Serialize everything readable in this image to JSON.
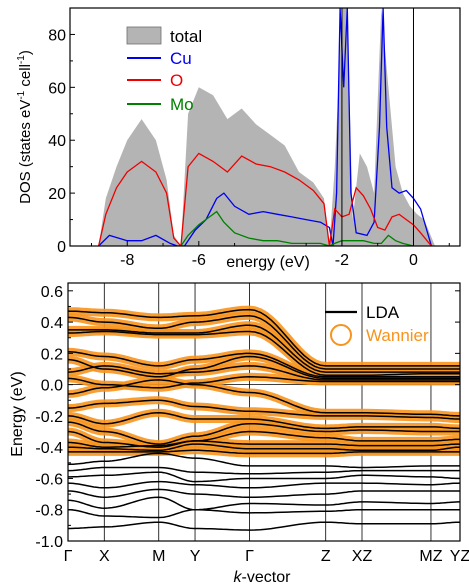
{
  "chart_data": [
    {
      "type": "area",
      "ylabel": "DOS (states eV",
      "ylabel_sup1": "-1",
      "ylabel_mid": " cell",
      "ylabel_sup2": "-1",
      "ylabel_end": ")",
      "xlabel": "energy (eV)",
      "xlim": [
        -9.6,
        1.3
      ],
      "ylim": [
        0,
        90
      ],
      "xticks": [
        -8,
        -6,
        -2,
        0
      ],
      "xticklabels": [
        "-8",
        "-6",
        "-2",
        "0"
      ],
      "yticks": [
        0,
        20,
        40,
        60,
        80
      ],
      "yticklabels": [
        "0",
        "20",
        "40",
        "60",
        "80"
      ],
      "vlines": [
        -2,
        0
      ],
      "legend_position": "top-left",
      "series": [
        {
          "name": "total",
          "color": "#b4b4b4",
          "style": "fill",
          "x": [
            -8.8,
            -8.6,
            -8.3,
            -8.0,
            -7.6,
            -7.2,
            -6.9,
            -6.7,
            -6.5,
            -6.3,
            -6.0,
            -5.6,
            -5.2,
            -4.8,
            -4.4,
            -4.0,
            -3.6,
            -3.2,
            -2.8,
            -2.5,
            -2.35,
            -2.2,
            -2.0,
            -1.85,
            -1.7,
            -1.5,
            -1.3,
            -1.1,
            -0.9,
            -0.7,
            -0.5,
            -0.3,
            -0.1,
            0.1,
            0.3,
            0.6
          ],
          "y": [
            0,
            18,
            30,
            40,
            48,
            40,
            25,
            4,
            0,
            50,
            60,
            57,
            48,
            52,
            46,
            42,
            38,
            28,
            24,
            18,
            0,
            30,
            90,
            90,
            10,
            35,
            30,
            20,
            90,
            60,
            30,
            20,
            15,
            12,
            10,
            0
          ]
        },
        {
          "name": "Cu",
          "color": "#0000ee",
          "style": "line",
          "x": [
            -8.8,
            -8.5,
            -8.0,
            -7.6,
            -7.2,
            -6.8,
            -6.6,
            -6.4,
            -6.1,
            -5.8,
            -5.5,
            -5.3,
            -5.0,
            -4.6,
            -4.2,
            -3.8,
            -3.4,
            -3.0,
            -2.6,
            -2.35,
            -2.25,
            -2.15,
            -2.05,
            -1.95,
            -1.85,
            -1.75,
            -1.6,
            -1.3,
            -1.1,
            -0.95,
            -0.85,
            -0.75,
            -0.6,
            -0.4,
            -0.2,
            0.0,
            0.2,
            0.5
          ],
          "y": [
            0,
            4,
            2,
            2,
            4,
            1,
            0,
            0,
            6,
            10,
            18,
            20,
            15,
            12,
            13,
            12,
            11,
            10,
            9,
            7,
            0,
            20,
            90,
            60,
            90,
            20,
            5,
            4,
            9,
            45,
            90,
            45,
            22,
            20,
            21,
            18,
            14,
            0
          ]
        },
        {
          "name": "O",
          "color": "#ee0000",
          "style": "line",
          "x": [
            -8.8,
            -8.6,
            -8.3,
            -8.0,
            -7.6,
            -7.2,
            -6.9,
            -6.7,
            -6.5,
            -6.3,
            -6.0,
            -5.6,
            -5.2,
            -4.8,
            -4.4,
            -4.0,
            -3.6,
            -3.2,
            -2.8,
            -2.5,
            -2.35,
            -2.2,
            -2.0,
            -1.8,
            -1.6,
            -1.4,
            -1.2,
            -1.0,
            -0.8,
            -0.6,
            -0.4,
            -0.2,
            0.0,
            0.2,
            0.5
          ],
          "y": [
            0,
            12,
            22,
            28,
            32,
            28,
            20,
            3,
            0,
            30,
            35,
            32,
            28,
            34,
            31,
            30,
            28,
            25,
            21,
            16,
            0,
            14,
            11,
            12,
            22,
            19,
            14,
            7,
            6,
            11,
            12,
            10,
            8,
            5,
            0
          ]
        },
        {
          "name": "Mo",
          "color": "#008000",
          "style": "line",
          "x": [
            -6.5,
            -6.3,
            -6.0,
            -5.7,
            -5.5,
            -5.3,
            -5.0,
            -4.6,
            -4.2,
            -3.8,
            -3.4,
            -3.0,
            -2.6,
            -2.35,
            -2.2,
            -2.0,
            -1.7,
            -1.4,
            -1.1,
            -0.9,
            -0.7,
            -0.5,
            -0.3,
            0.0
          ],
          "y": [
            0,
            4,
            8,
            11,
            13,
            9,
            5,
            3,
            2,
            2,
            1,
            1,
            1,
            0,
            1,
            2,
            2,
            2,
            1,
            1,
            4,
            2,
            1,
            0
          ]
        }
      ]
    },
    {
      "type": "line",
      "ylabel": "Energy (eV)",
      "xlabel_italic": "k",
      "xlabel_rest": "-vector",
      "ylim": [
        -1.0,
        0.65
      ],
      "yticks": [
        -1.0,
        -0.8,
        -0.6,
        -0.4,
        -0.2,
        0.0,
        0.2,
        0.4,
        0.6
      ],
      "yticklabels": [
        "-1.0",
        "-0.8",
        "-0.6",
        "-0.4",
        "-0.2",
        "0.0",
        "0.2",
        "0.4",
        "0.6"
      ],
      "kpoints": [
        0,
        1.0,
        2.5,
        3.5,
        5.0,
        7.1,
        8.1,
        10.0,
        10.8
      ],
      "kpoint_labels": [
        "Γ",
        "X",
        "M",
        "Y",
        "Γ",
        "Z",
        "XZ",
        "MZ",
        "YZ"
      ],
      "fermi_level": 0.0,
      "legend_position": "top-right",
      "legend": [
        {
          "name": "LDA",
          "color": "#000000"
        },
        {
          "name": "Wannier",
          "color": "#f7941d"
        }
      ],
      "wannier_bands": [
        [
          0.47,
          0.46,
          0.43,
          0.44,
          0.48,
          0.12,
          0.12,
          0.12,
          0.12
        ],
        [
          0.43,
          0.4,
          0.36,
          0.4,
          0.44,
          0.1,
          0.1,
          0.1,
          0.1
        ],
        [
          0.35,
          0.35,
          0.33,
          0.33,
          0.38,
          0.08,
          0.08,
          0.08,
          0.08
        ],
        [
          0.33,
          0.34,
          0.32,
          0.32,
          0.34,
          0.06,
          0.06,
          0.07,
          0.07
        ],
        [
          0.21,
          0.18,
          0.12,
          0.16,
          0.2,
          0.05,
          0.05,
          0.05,
          0.05
        ],
        [
          0.16,
          0.1,
          0.05,
          0.1,
          0.18,
          0.04,
          0.04,
          0.04,
          0.04
        ],
        [
          0.08,
          0.12,
          0.07,
          0.08,
          0.12,
          0.03,
          0.03,
          0.03,
          0.03
        ],
        [
          0.04,
          0.0,
          -0.02,
          0.01,
          0.05,
          0.02,
          0.02,
          0.02,
          0.02
        ],
        [
          -0.06,
          -0.02,
          0.03,
          0.0,
          -0.05,
          -0.18,
          -0.18,
          -0.19,
          -0.2
        ],
        [
          -0.15,
          -0.12,
          -0.1,
          -0.14,
          -0.17,
          -0.2,
          -0.2,
          -0.21,
          -0.22
        ],
        [
          -0.2,
          -0.25,
          -0.18,
          -0.22,
          -0.22,
          -0.28,
          -0.27,
          -0.27,
          -0.28
        ],
        [
          -0.24,
          -0.3,
          -0.38,
          -0.33,
          -0.25,
          -0.3,
          -0.29,
          -0.3,
          -0.3
        ],
        [
          -0.3,
          -0.37,
          -0.4,
          -0.36,
          -0.3,
          -0.34,
          -0.36,
          -0.36,
          -0.35
        ],
        [
          -0.37,
          -0.4,
          -0.39,
          -0.36,
          -0.38,
          -0.38,
          -0.39,
          -0.39,
          -0.38
        ],
        [
          -0.4,
          -0.41,
          -0.42,
          -0.38,
          -0.41,
          -0.41,
          -0.42,
          -0.42,
          -0.4
        ],
        [
          -0.43,
          -0.43,
          -0.43,
          -0.42,
          -0.44,
          -0.44,
          -0.43,
          -0.43,
          -0.43
        ]
      ],
      "lda_only_bands": [
        [
          -0.51,
          -0.49,
          -0.44,
          -0.47,
          -0.52,
          -0.52,
          -0.53,
          -0.52,
          -0.52
        ],
        [
          -0.55,
          -0.53,
          -0.53,
          -0.56,
          -0.57,
          -0.56,
          -0.55,
          -0.55,
          -0.55
        ],
        [
          -0.59,
          -0.58,
          -0.56,
          -0.62,
          -0.6,
          -0.6,
          -0.58,
          -0.59,
          -0.6
        ],
        [
          -0.63,
          -0.66,
          -0.62,
          -0.64,
          -0.66,
          -0.63,
          -0.63,
          -0.64,
          -0.63
        ],
        [
          -0.68,
          -0.72,
          -0.67,
          -0.7,
          -0.72,
          -0.7,
          -0.68,
          -0.68,
          -0.68
        ],
        [
          -0.74,
          -0.79,
          -0.72,
          -0.8,
          -0.76,
          -0.77,
          -0.75,
          -0.76,
          -0.75
        ],
        [
          -0.8,
          -0.84,
          -0.85,
          -0.8,
          -0.82,
          -0.81,
          -0.8,
          -0.8,
          -0.8
        ],
        [
          -0.92,
          -0.91,
          -0.88,
          -0.92,
          -0.93,
          -0.88,
          -0.89,
          -0.89,
          -0.88
        ]
      ]
    }
  ]
}
